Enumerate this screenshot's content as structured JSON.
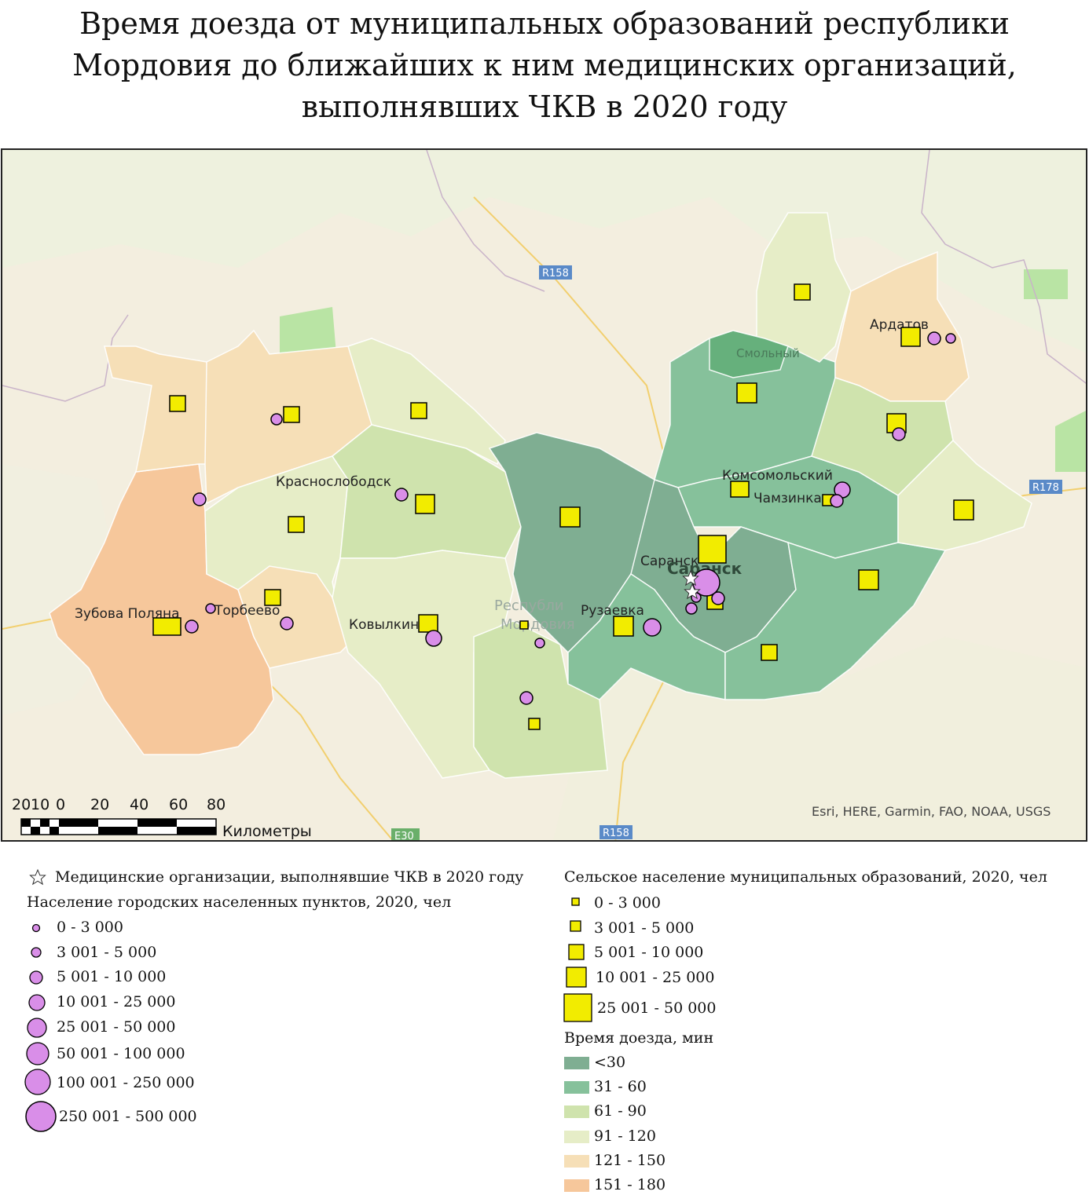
{
  "title": {
    "line1": "Время доезда от муниципальных образований республики",
    "line2": "Мордовия до ближайших к ним медицинских организаций,",
    "line3": "выполнявших ЧКВ в 2020 году"
  },
  "map": {
    "roads": [
      "R158",
      "R158",
      "R178",
      "E30"
    ],
    "place_labels": [
      "Ардатов",
      "Смольный",
      "Комсомольский",
      "Чамзинка",
      "Краснослободск",
      "Саранск",
      "Рузаевка",
      "Зубова Поляна",
      "Торбеево",
      "Ковылкино"
    ],
    "base_labels": {
      "republic_line1": "Республи",
      "republic_line2": "Мордовия",
      "saransk_big": "Саранск"
    },
    "attribution": "Esri, HERE, Garmin, FAO, NOAA, USGS",
    "scale_bar": {
      "ticks": [
        "20",
        "10",
        "0",
        "20",
        "40",
        "60",
        "80"
      ],
      "unit": "Километры"
    },
    "colors": {
      "lt30": "#7fae92",
      "31_60": "#86c19b",
      "61_90": "#cfe3ad",
      "91_120": "#e6edc7",
      "121_150": "#f6dfb7",
      "151_180": "#f6c79b",
      "urban": "#d98ee8",
      "rural": "#f2ec00",
      "park": "#b9e4a4"
    }
  },
  "legend": {
    "star_title": "Медицинские организации, выполнявшие ЧКВ в 2020 году",
    "urban_title": "Население городских населенных пунктов, 2020, чел",
    "urban_classes": [
      "0 - 3 000",
      "3 001 - 5 000",
      "5 001 - 10 000",
      "10 001 - 25 000",
      "25 001 - 50 000",
      "50 001 - 100 000",
      "100 001 - 250 000",
      "250 001 - 500 000"
    ],
    "rural_title": "Сельское население муниципальных образований, 2020, чел",
    "rural_classes": [
      "0 - 3 000",
      "3 001 - 5 000",
      "5 001 - 10 000",
      "10 001 - 25 000",
      "25 001 - 50 000"
    ],
    "time_title": "Время доезда, мин",
    "time_classes": [
      "<30",
      "31 - 60",
      "61 - 90",
      "91 - 120",
      "121 - 150",
      "151 - 180"
    ]
  }
}
